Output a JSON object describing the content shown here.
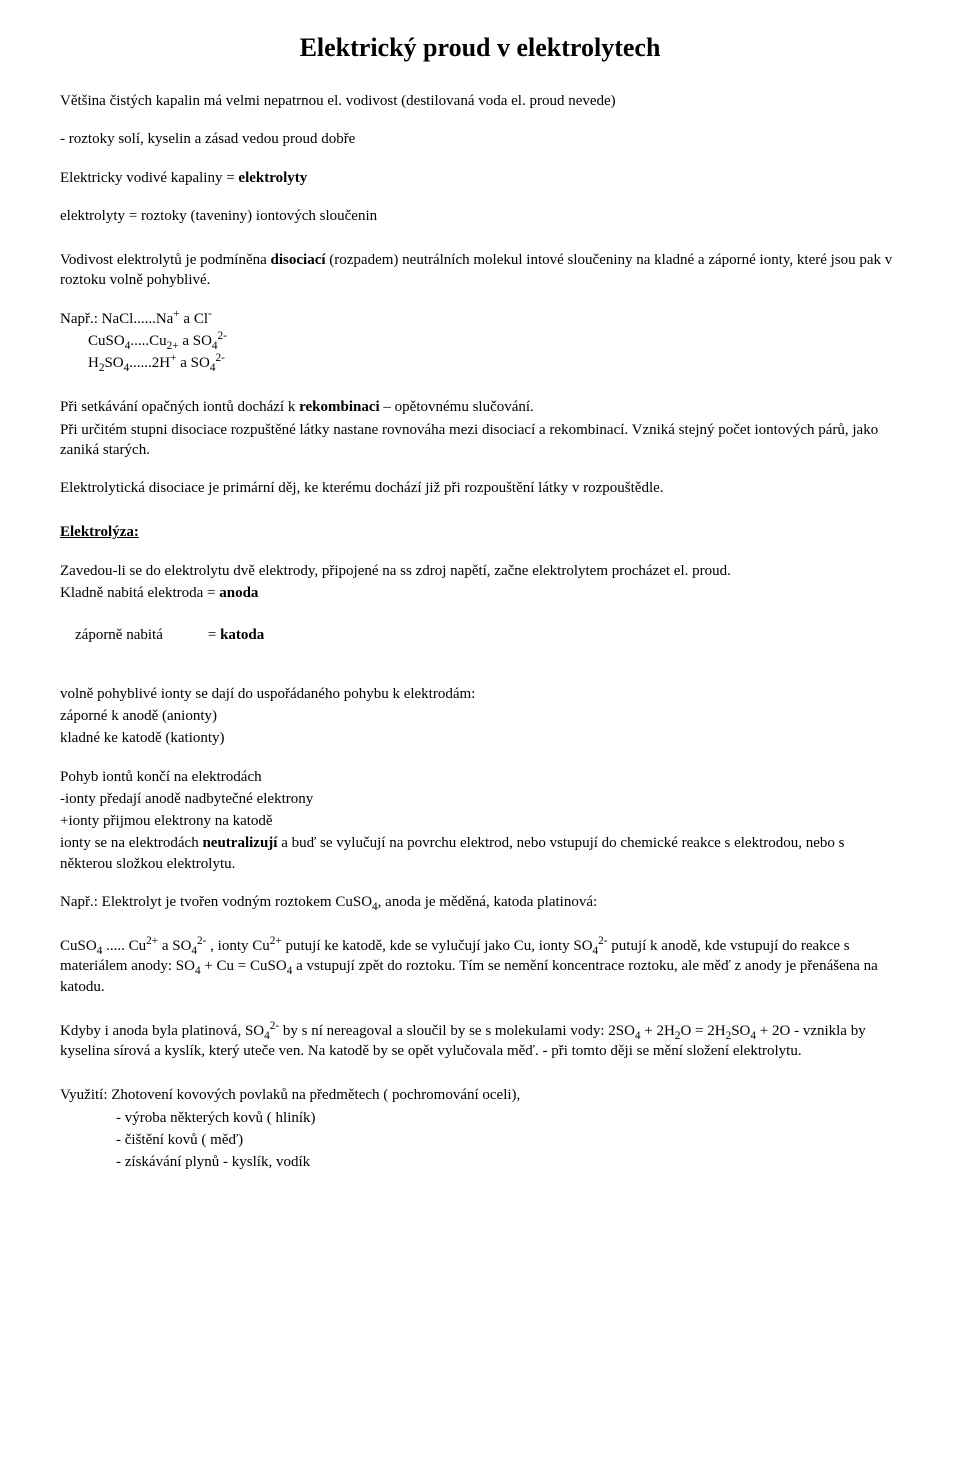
{
  "title": "Elektrický  proud v elektrolytech",
  "p1": "Většina čistých kapalin má velmi nepatrnou el. vodivost (destilovaná voda el. proud nevede)",
  "p2a": "- roztoky solí, kyselin a zásad vedou proud dobře",
  "p3a": "Elektricky vodivé kapaliny = ",
  "p3b": "elektrolyty",
  "p4": "elektrolyty = roztoky (taveniny) iontových sloučenin",
  "p5a": "Vodivost elektrolytů je podmíněna ",
  "p5b": "disociací",
  "p5c": " (rozpadem) neutrálních molekul intové sloučeniny na kladné a záporné ionty, které jsou pak v roztoku volně pohyblivé.",
  "ex_lead": "Např.: NaCl......Na",
  "ex_lead2": " a Cl",
  "ex2a": "CuSO",
  "ex2b": ".....Cu",
  "ex2c": " a SO",
  "ex3a": "H",
  "ex3b": "SO",
  "ex3c": "......2H",
  "ex3d": " a SO",
  "p6a": "Při setkávání opačných iontů dochází k ",
  "p6b": "rekombinaci",
  "p6c": " – opětovnému slučování.",
  "p7": "Při určitém stupni disociace rozpuštěné látky nastane rovnováha mezi disociací a rekombinací. Vzniká stejný počet iontových párů, jako zaniká starých.",
  "p8": "Elektrolytická disociace je primární děj, ke kterému dochází již při rozpouštění látky v rozpouštědle.",
  "h2": "Elektrolýza:",
  "p9": "Zavedou-li se do elektrolytu dvě elektrody, připojené na ss zdroj napětí, začne elektrolytem procházet el. proud.",
  "p10a": "Kladně nabitá elektroda = ",
  "p10b": "anoda",
  "p11a": "záporně nabitá            = ",
  "p11b": "katoda",
  "p12": "volně pohyblivé ionty se dají do uspořádaného pohybu k elektrodám:",
  "p13": "záporné k anodě (anionty)",
  "p14": "kladné ke katodě (kationty)",
  "p15": "Pohyb iontů končí na elektrodách",
  "p16": "-ionty předají anodě nadbytečné elektrony",
  "p17": "+ionty přijmou elektrony na katodě",
  "p18a": "ionty se na elektrodách ",
  "p18b": "neutralizují",
  "p18c": " a buď se vylučují na povrchu elektrod, nebo vstupují do chemické reakce s elektrodou, nebo s některou složkou elektrolytu.",
  "p19a": "Např.: Elektrolyt je tvořen vodným roztokem CuSO",
  "p19b": ", anoda je měděná, katoda platinová:",
  "p20a": "CuSO",
  "p20b": " ..... Cu",
  "p20c": " a SO",
  "p20d": " , ionty Cu",
  "p20e": " putují ke katodě, kde se vylučují jako Cu, ionty SO",
  "p20f": " putují k anodě, kde vstupují do reakce s materiálem anody: SO",
  "p20g": " + Cu = CuSO",
  "p20h": " a vstupují zpět do roztoku. Tím se nemění koncentrace roztoku, ale měď z anody je přenášena na katodu.",
  "p21a": "Kdyby i anoda byla platinová, SO",
  "p21b": " by s ní nereagoval a sloučil by se s molekulami vody: 2SO",
  "p21c": " + 2H",
  "p21d": "O = 2H",
  "p21e": "SO",
  "p21f": " + 2O - vznikla by kyselina sírová a kyslík, který uteče ven. Na katodě by se opět vylučovala měď. - při tomto ději se mění složení elektrolytu.",
  "p22": "Využití: Zhotovení kovových povlaků na předmětech ( pochromování oceli),",
  "p23": "- výroba některých kovů ( hliník)",
  "p24": "- čištění kovů ( měď)",
  "p25": "- získávání plynů - kyslík, vodík"
}
